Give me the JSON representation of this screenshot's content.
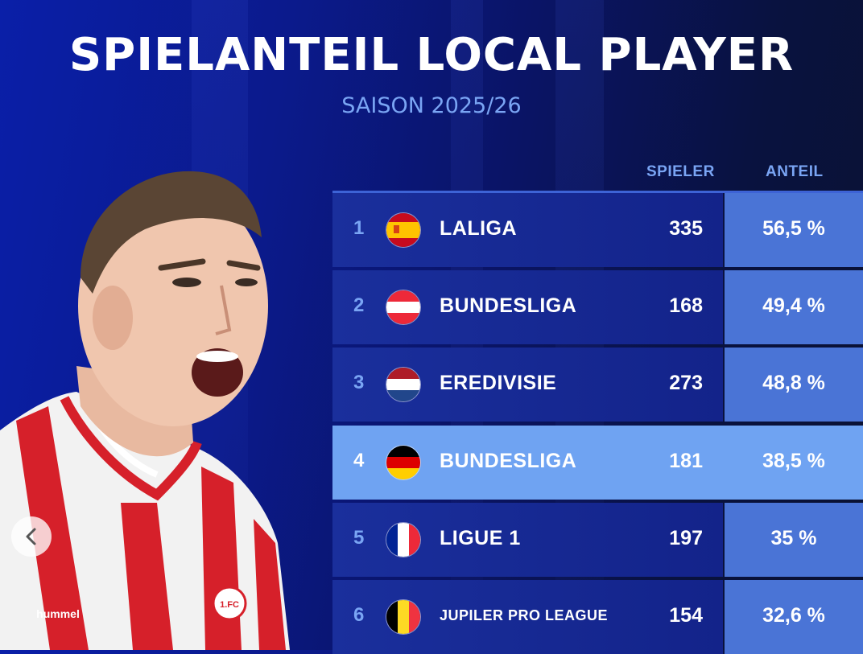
{
  "header": {
    "title": "SPIELANTEIL LOCAL PLAYER",
    "subtitle": "SAISON 2025/26"
  },
  "table": {
    "columns": {
      "players": "SPIELER",
      "share": "ANTEIL"
    },
    "rows": [
      {
        "rank": "1",
        "league": "LALIGA",
        "country_flag": "spain-flag-icon",
        "players": "335",
        "share": "56,5 %"
      },
      {
        "rank": "2",
        "league": "BUNDESLIGA",
        "country_flag": "austria-flag-icon",
        "players": "168",
        "share": "49,4 %"
      },
      {
        "rank": "3",
        "league": "EREDIVISIE",
        "country_flag": "netherlands-flag-icon",
        "players": "273",
        "share": "48,8 %"
      },
      {
        "rank": "4",
        "league": "BUNDESLIGA",
        "country_flag": "germany-flag-icon",
        "players": "181",
        "share": "38,5 %",
        "highlighted": true
      },
      {
        "rank": "5",
        "league": "LIGUE 1",
        "country_flag": "france-flag-icon",
        "players": "197",
        "share": "35 %"
      },
      {
        "rank": "6",
        "league": "JUPILER PRO LEAGUE",
        "country_flag": "belgium-flag-icon",
        "players": "154",
        "share": "32,6 %"
      }
    ]
  },
  "colors": {
    "accent_light_blue": "#7aa5f4",
    "row_dark": "#13238a",
    "share_cell": "#4a74d6",
    "highlight_row": "#6fa3f2"
  },
  "nav": {
    "prev_icon": "chevron-left-icon"
  }
}
